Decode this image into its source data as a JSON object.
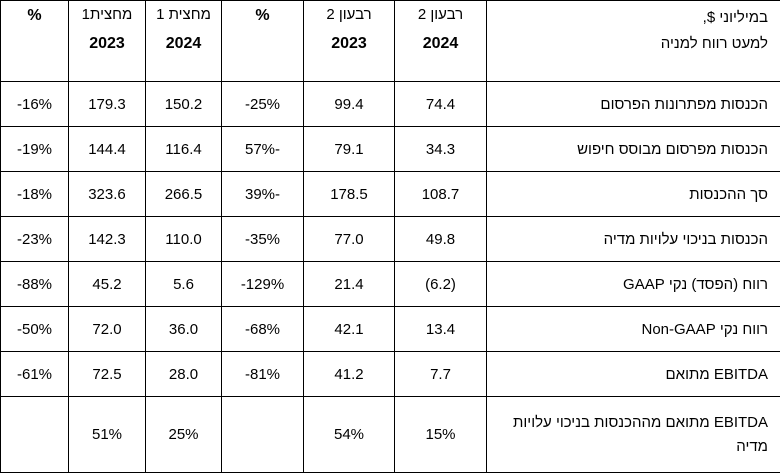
{
  "header": {
    "label_line1": "במיליוני $,",
    "label_line2": "למעט רווח למניה",
    "col_q2_2024_top": "רבעון 2",
    "col_q2_2024_bot": "2024",
    "col_q2_2023_top": "רבעון 2",
    "col_q2_2023_bot": "2023",
    "col_q_pct": "%",
    "col_h1_2024_top": "מחצית 1",
    "col_h1_2024_bot": "2024",
    "col_h1_2023_top": "מחצית1",
    "col_h1_2023_bot": "2023",
    "col_h_pct": "%"
  },
  "rows": [
    {
      "label": "הכנסות מפתרונות הפרסום",
      "q2_2024": "74.4",
      "q2_2023": "99.4",
      "q_pct": "-25%",
      "h1_2024": "150.2",
      "h1_2023": "179.3",
      "h_pct": "-16%"
    },
    {
      "label": "הכנסות מפרסום מבוסס חיפוש",
      "q2_2024": "34.3",
      "q2_2023": "79.1",
      "q_pct": "57%-",
      "h1_2024": "116.4",
      "h1_2023": "144.4",
      "h_pct": "-19%"
    },
    {
      "label": "סך ההכנסות",
      "q2_2024": "108.7",
      "q2_2023": "178.5",
      "q_pct": "39%-",
      "h1_2024": "266.5",
      "h1_2023": "323.6",
      "h_pct": "-18%"
    },
    {
      "label": "הכנסות בניכוי עלויות מדיה",
      "q2_2024": "49.8",
      "q2_2023": "77.0",
      "q_pct": "-35%",
      "h1_2024": "110.0",
      "h1_2023": "142.3",
      "h_pct": "-23%"
    },
    {
      "label": "רווח (הפסד) נקי GAAP",
      "q2_2024": "(6.2)",
      "q2_2023": "21.4",
      "q_pct": "-129%",
      "h1_2024": "5.6",
      "h1_2023": "45.2",
      "h_pct": "-88%"
    },
    {
      "label": "רווח נקי Non-GAAP",
      "q2_2024": "13.4",
      "q2_2023": "42.1",
      "q_pct": "-68%",
      "h1_2024": "36.0",
      "h1_2023": "72.0",
      "h_pct": "-50%"
    },
    {
      "label": "EBITDA מתואם",
      "q2_2024": "7.7",
      "q2_2023": "41.2",
      "q_pct": "-81%",
      "h1_2024": "28.0",
      "h1_2023": "72.5",
      "h_pct": "-61%"
    }
  ],
  "last_row": {
    "label": "EBITDA מתואם מההכנסות בניכוי עלויות מדיה",
    "q2_2024": "15%",
    "q2_2023": "54%",
    "q_pct": "",
    "h1_2024": "25%",
    "h1_2023": "51%",
    "h_pct": ""
  }
}
